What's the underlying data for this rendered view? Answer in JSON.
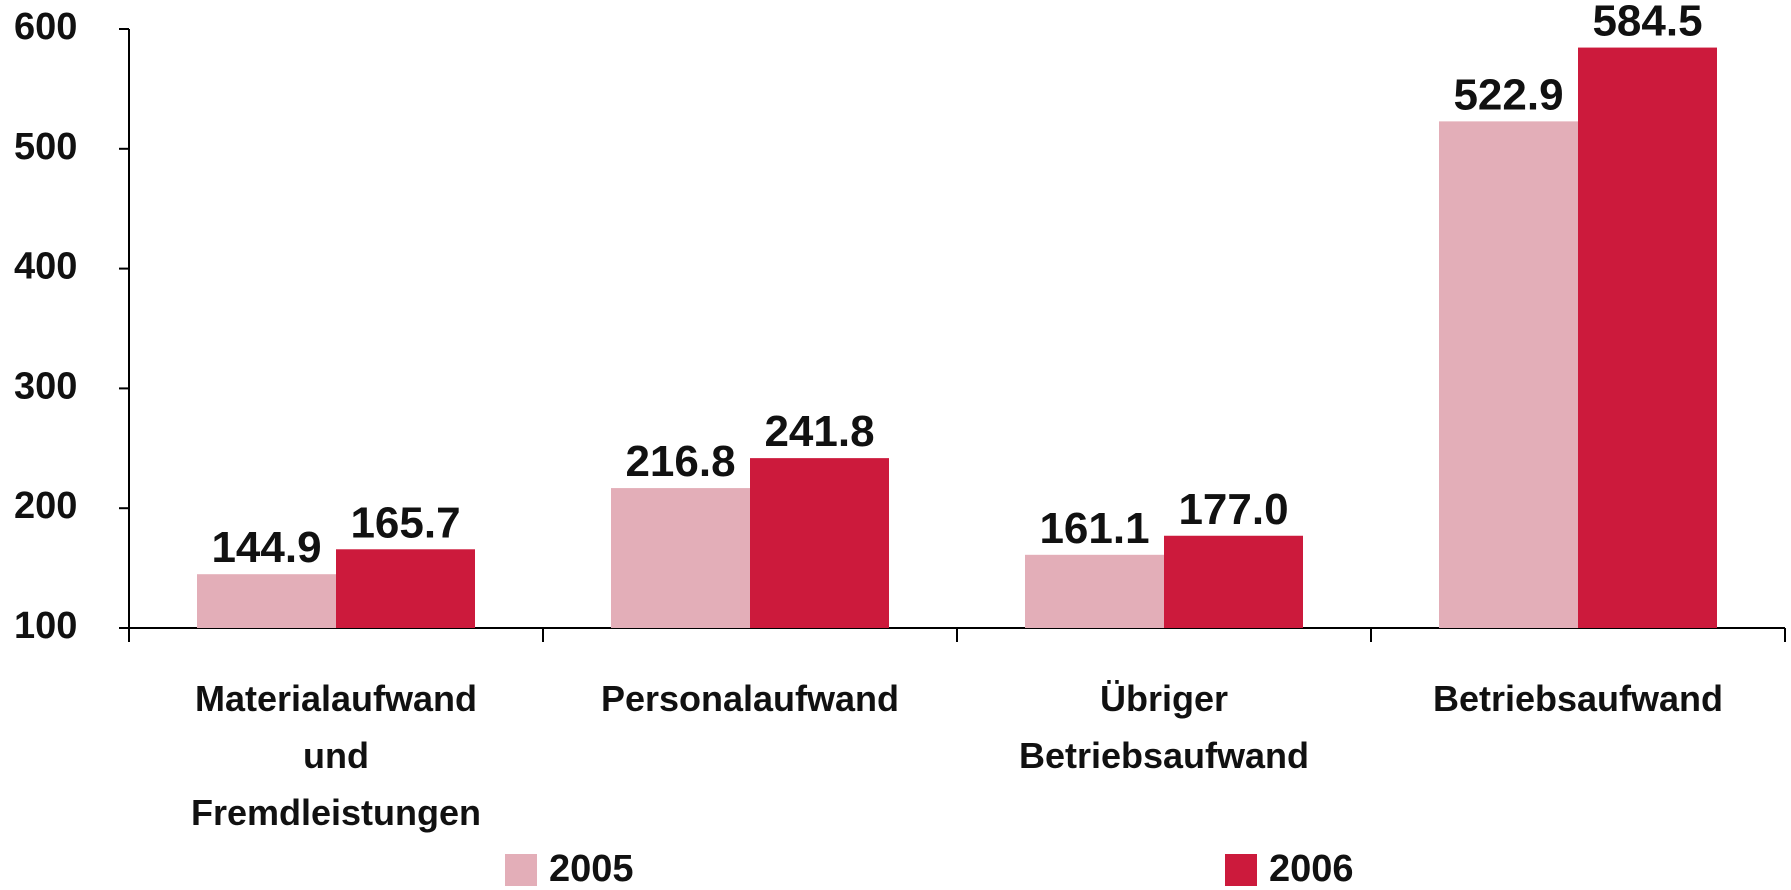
{
  "chart_data": {
    "type": "bar",
    "categories": [
      "Materialaufwand und Fremdleistungen",
      "Personalaufwand",
      "Übriger Betriebsaufwand",
      "Betriebsaufwand"
    ],
    "series": [
      {
        "name": "2005",
        "color": "#e3aeb8",
        "values": [
          144.9,
          216.8,
          161.1,
          522.9
        ],
        "value_labels": [
          "144.9",
          "216.8",
          "161.1",
          "522.9"
        ]
      },
      {
        "name": "2006",
        "color": "#cc1a3c",
        "values": [
          165.7,
          241.8,
          177.0,
          584.5
        ],
        "value_labels": [
          "165.7",
          "241.8",
          "177.0",
          "584.5"
        ]
      }
    ],
    "ylim": [
      100,
      600
    ],
    "yticks": [
      100,
      200,
      300,
      400,
      500,
      600
    ],
    "grid": false,
    "legend": "bottom"
  }
}
